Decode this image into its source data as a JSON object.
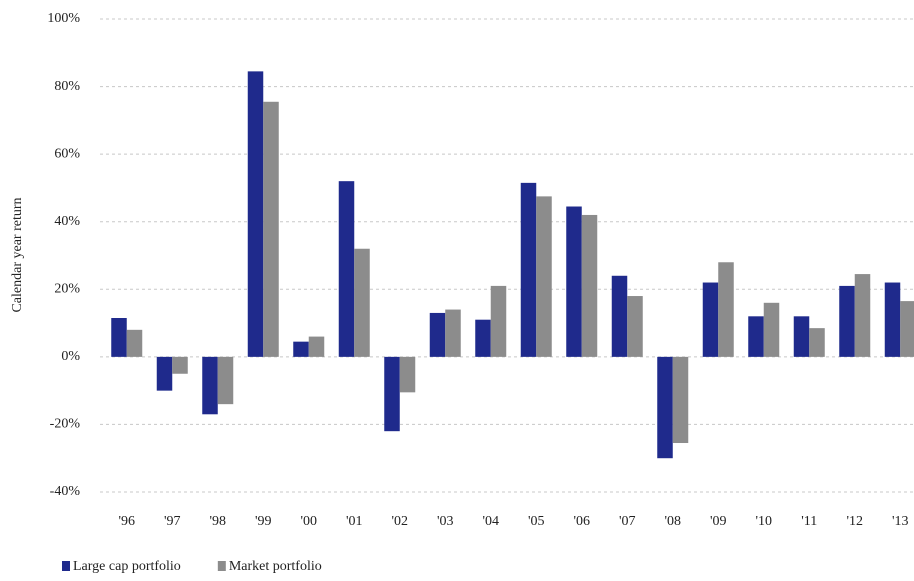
{
  "chart_data": {
    "type": "bar",
    "y_label": "Calendar year return",
    "categories": [
      "'96",
      "'97",
      "'98",
      "'99",
      "'00",
      "'01",
      "'02",
      "'03",
      "'04",
      "'05",
      "'06",
      "'07",
      "'08",
      "'09",
      "'10",
      "'11",
      "'12",
      "'13"
    ],
    "series": [
      {
        "name": "Large cap portfolio",
        "color": "#1f2a8c",
        "values": [
          11.5,
          -10,
          -17,
          84.5,
          4.5,
          52,
          -22,
          13,
          11,
          51.5,
          44.5,
          24,
          -30,
          22,
          12,
          12,
          21,
          22
        ]
      },
      {
        "name": "Market portfolio",
        "color": "#8c8c8c",
        "values": [
          8,
          -5,
          -14,
          75.5,
          6,
          32,
          -10.5,
          14,
          21,
          47.5,
          42,
          18,
          -25.5,
          28,
          16,
          8.5,
          24.5,
          16.5
        ]
      }
    ],
    "ylim": [
      -40,
      100
    ],
    "yticks": [
      {
        "value": -40,
        "label": "-40%"
      },
      {
        "value": -20,
        "label": "-20%"
      },
      {
        "value": 0,
        "label": "0%"
      },
      {
        "value": 20,
        "label": "20%"
      },
      {
        "value": 40,
        "label": "40%"
      },
      {
        "value": 60,
        "label": "60%"
      },
      {
        "value": 80,
        "label": "80%"
      },
      {
        "value": 100,
        "label": "100%"
      }
    ],
    "grid": true,
    "legend": "bottom-left"
  }
}
